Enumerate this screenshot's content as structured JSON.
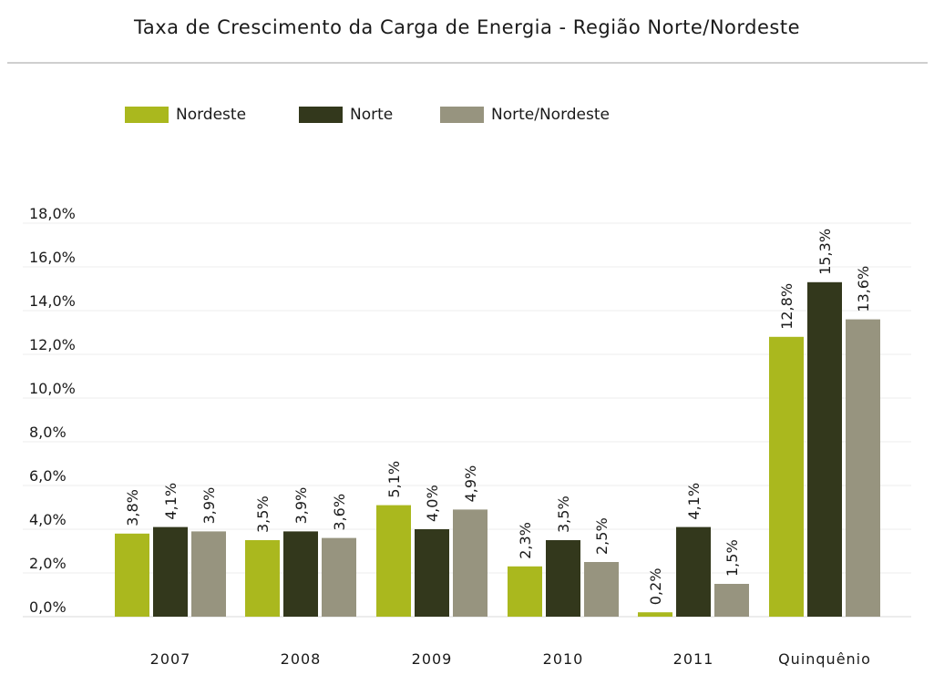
{
  "chart_data": {
    "type": "bar",
    "title": "Taxa de Crescimento da Carga de Energia - Região Norte/Nordeste",
    "categories": [
      "2007",
      "2008",
      "2009",
      "2010",
      "2011",
      "Quinquênio"
    ],
    "series": [
      {
        "name": "Nordeste",
        "color": "#aab81e",
        "values": [
          3.8,
          3.5,
          5.1,
          2.3,
          0.2,
          12.8
        ],
        "labels": [
          "3,8%",
          "3,5%",
          "5,1%",
          "2,3%",
          "0,2%",
          "12,8%"
        ]
      },
      {
        "name": "Norte",
        "color": "#33381c",
        "values": [
          4.1,
          3.9,
          4.0,
          3.5,
          4.1,
          15.3
        ],
        "labels": [
          "4,1%",
          "3,9%",
          "4,0%",
          "3,5%",
          "4,1%",
          "15,3%"
        ]
      },
      {
        "name": "Norte/Nordeste",
        "color": "#97947f",
        "values": [
          3.9,
          3.6,
          4.9,
          2.5,
          1.5,
          13.6
        ],
        "labels": [
          "3,9%",
          "3,6%",
          "4,9%",
          "2,5%",
          "1,5%",
          "13,6%"
        ]
      }
    ],
    "y_ticks": [
      0,
      2,
      4,
      6,
      8,
      10,
      12,
      14,
      16,
      18
    ],
    "y_tick_labels": [
      "0,0%",
      "2,0%",
      "4,0%",
      "6,0%",
      "8,0%",
      "10,0%",
      "12,0%",
      "14,0%",
      "16,0%",
      "18,0%"
    ],
    "ylim": [
      0,
      18
    ],
    "grid": true,
    "legend_position": "top-left"
  }
}
